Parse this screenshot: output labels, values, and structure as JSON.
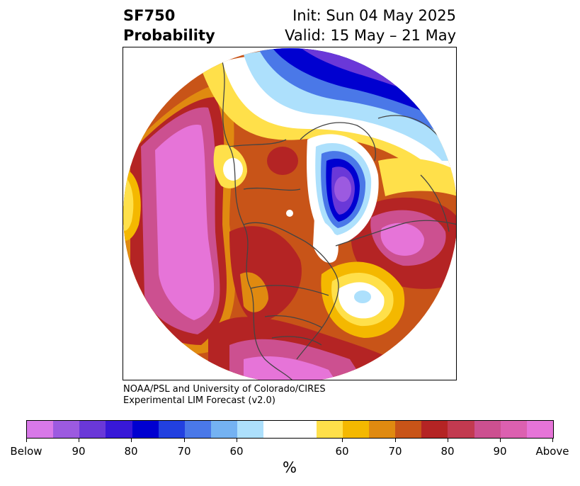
{
  "header": {
    "title_line1": "SF750",
    "title_line2": "Probability",
    "init_text": "Init: Sun 04 May 2025",
    "valid_text": "Valid: 15 May – 21 May"
  },
  "credit": {
    "line1": "NOAA/PSL and University of Colorado/CIRES",
    "line2": "Experimental LIM Forecast (v2.0)"
  },
  "colorbar": {
    "unit_label": "%",
    "tick_labels": [
      "Below",
      "90",
      "80",
      "70",
      "60",
      "60",
      "70",
      "80",
      "90",
      "Above"
    ],
    "colors": [
      "#d878e8",
      "#9c5ae0",
      "#6a38d8",
      "#3818d8",
      "#0000d0",
      "#2240e0",
      "#4a78e8",
      "#74b2f2",
      "#ade0fc",
      "#ffffff",
      "#ffe04a",
      "#f4b800",
      "#e08a10",
      "#c85418",
      "#b42424",
      "#c23a50",
      "#cc5090",
      "#dc60b0",
      "#e674d8"
    ]
  },
  "map": {
    "projection": "north-polar-stereographic",
    "colors": {
      "below_deep": "#0000d0",
      "below_mid": "#4a78e8",
      "below_light": "#ade0fc",
      "below_violet": "#9c5ae0",
      "neutral": "#ffffff",
      "above_yellow": "#ffe04a",
      "above_gold": "#f4b800",
      "above_orange": "#e08a10",
      "above_rust": "#c85418",
      "above_red": "#b42424",
      "above_pink": "#cc5090",
      "above_magenta": "#e674d8"
    }
  }
}
